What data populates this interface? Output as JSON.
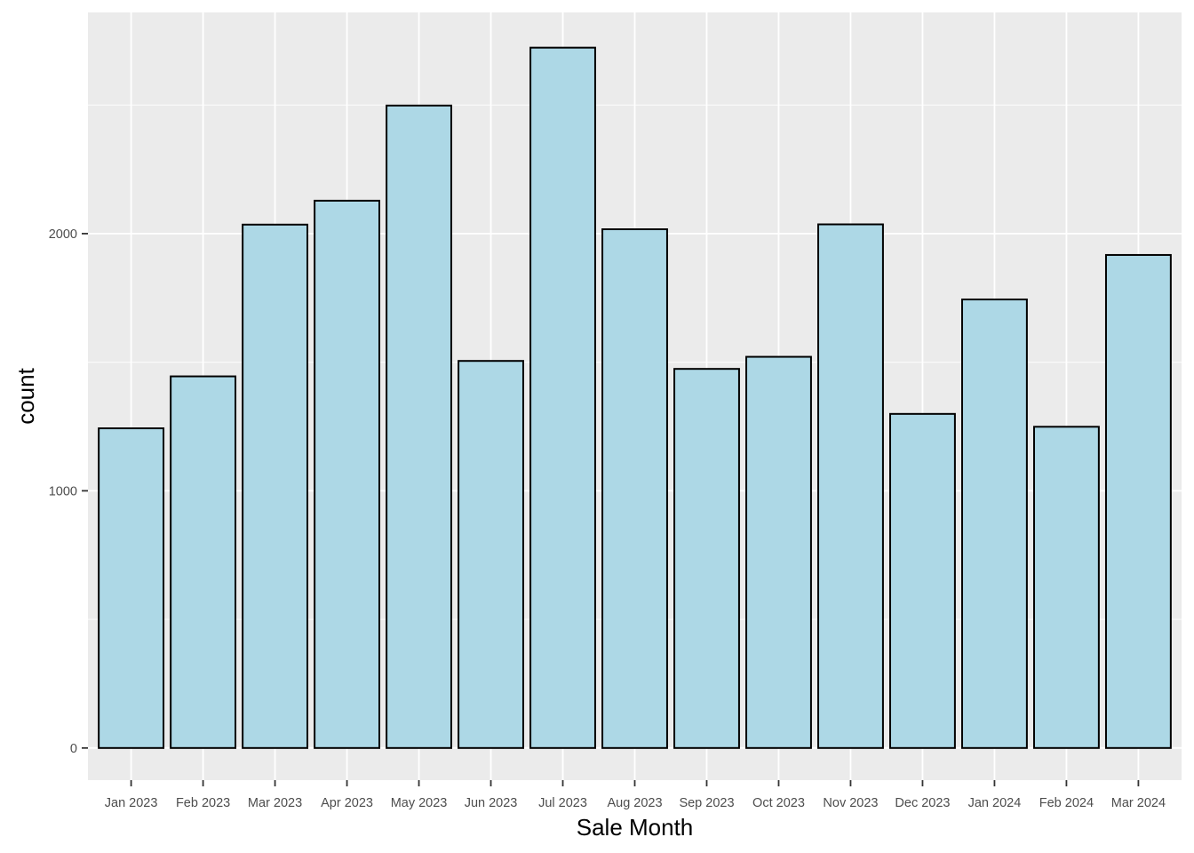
{
  "chart_data": {
    "type": "bar",
    "title": "",
    "xlabel": "Sale Month",
    "ylabel": "count",
    "categories": [
      "Jan 2023",
      "Feb 2023",
      "Mar 2023",
      "Apr 2023",
      "May 2023",
      "Jun 2023",
      "Jul 2023",
      "Aug 2023",
      "Sep 2023",
      "Oct 2023",
      "Nov 2023",
      "Dec 2023",
      "Jan 2024",
      "Feb 2024",
      "Mar 2024"
    ],
    "values": [
      1243,
      1445,
      2035,
      2128,
      2498,
      1505,
      2723,
      2017,
      1474,
      1521,
      2036,
      1299,
      1744,
      1249,
      1917
    ],
    "ylim": [
      -125,
      2860
    ],
    "y_ticks": [
      0,
      1000,
      2000
    ],
    "y_tick_labels": [
      "0",
      "1000",
      "2000"
    ],
    "grid": true,
    "legend": "none",
    "colors": {
      "bar_fill": "#add8e6",
      "bar_stroke": "#000000",
      "panel_background": "#ebebeb",
      "grid_line": "#ffffff"
    }
  }
}
